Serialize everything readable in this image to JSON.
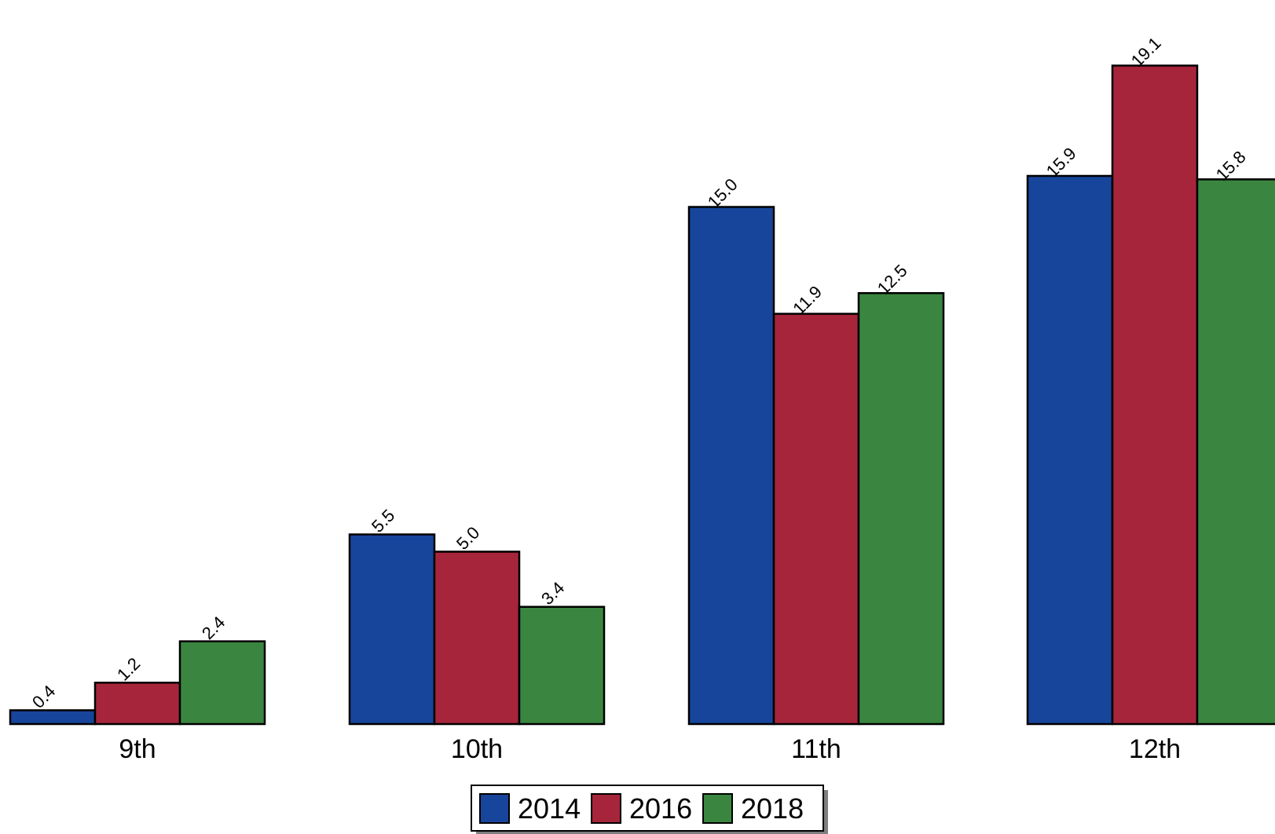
{
  "chart_data": {
    "type": "bar",
    "categories": [
      "9th",
      "10th",
      "11th",
      "12th"
    ],
    "series": [
      {
        "name": "2014",
        "values": [
          0.4,
          5.5,
          15.0,
          15.9
        ],
        "labels": [
          "0.4",
          "5.5",
          "15.0",
          "15.9"
        ],
        "color": "#17459b"
      },
      {
        "name": "2016",
        "values": [
          1.2,
          5.0,
          11.9,
          19.1
        ],
        "labels": [
          "1.2",
          "5.0",
          "11.9",
          "19.1"
        ],
        "color": "#a6253b"
      },
      {
        "name": "2018",
        "values": [
          2.4,
          3.4,
          12.5,
          15.8
        ],
        "labels": [
          "2.4",
          "3.4",
          "12.5",
          "15.8"
        ],
        "color": "#3a8640"
      }
    ],
    "title": "",
    "xlabel": "",
    "ylabel": "",
    "ylim": [
      0,
      19.1
    ],
    "grid": false,
    "legend_position": "bottom-center"
  }
}
